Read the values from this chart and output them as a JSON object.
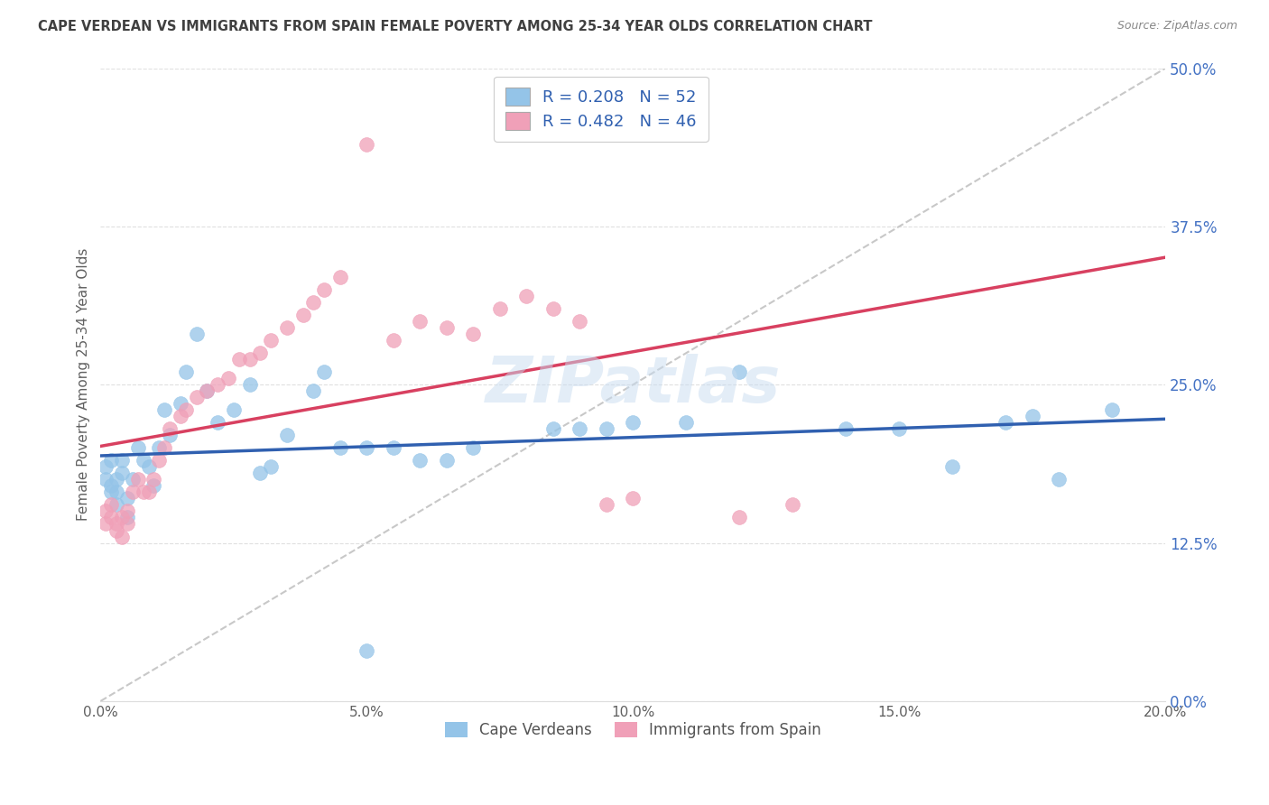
{
  "title": "CAPE VERDEAN VS IMMIGRANTS FROM SPAIN FEMALE POVERTY AMONG 25-34 YEAR OLDS CORRELATION CHART",
  "source": "Source: ZipAtlas.com",
  "ylabel": "Female Poverty Among 25-34 Year Olds",
  "xlim": [
    0.0,
    0.2
  ],
  "ylim": [
    0.0,
    0.5
  ],
  "xlabel_vals": [
    0.0,
    0.05,
    0.1,
    0.15,
    0.2
  ],
  "xlabel_ticks": [
    "0.0%",
    "5.0%",
    "10.0%",
    "15.0%",
    "20.0%"
  ],
  "ylabel_vals": [
    0.0,
    0.125,
    0.25,
    0.375,
    0.5
  ],
  "ylabel_ticks": [
    "0.0%",
    "12.5%",
    "25.0%",
    "37.5%",
    "50.0%"
  ],
  "legend_label1": "Cape Verdeans",
  "legend_label2": "Immigrants from Spain",
  "blue_scatter_color": "#94C4E8",
  "pink_scatter_color": "#F0A0B8",
  "blue_line_color": "#3060B0",
  "pink_line_color": "#D84060",
  "diag_line_color": "#C8C8C8",
  "background_color": "#FFFFFF",
  "grid_color": "#E0E0E0",
  "watermark_color": "#C8DCF0",
  "title_color": "#404040",
  "source_color": "#888888",
  "ylabel_color": "#606060",
  "ytick_color": "#4472C4",
  "xtick_color": "#606060",
  "cv_x": [
    0.001,
    0.001,
    0.002,
    0.002,
    0.002,
    0.003,
    0.003,
    0.003,
    0.004,
    0.004,
    0.005,
    0.005,
    0.006,
    0.007,
    0.008,
    0.009,
    0.01,
    0.011,
    0.012,
    0.013,
    0.015,
    0.016,
    0.018,
    0.02,
    0.022,
    0.025,
    0.028,
    0.03,
    0.032,
    0.035,
    0.04,
    0.042,
    0.045,
    0.05,
    0.055,
    0.06,
    0.065,
    0.07,
    0.085,
    0.09,
    0.095,
    0.1,
    0.11,
    0.12,
    0.14,
    0.15,
    0.16,
    0.17,
    0.175,
    0.18,
    0.19,
    0.05
  ],
  "cv_y": [
    0.175,
    0.185,
    0.165,
    0.17,
    0.19,
    0.165,
    0.175,
    0.155,
    0.18,
    0.19,
    0.16,
    0.145,
    0.175,
    0.2,
    0.19,
    0.185,
    0.17,
    0.2,
    0.23,
    0.21,
    0.235,
    0.26,
    0.29,
    0.245,
    0.22,
    0.23,
    0.25,
    0.18,
    0.185,
    0.21,
    0.245,
    0.26,
    0.2,
    0.2,
    0.2,
    0.19,
    0.19,
    0.2,
    0.215,
    0.215,
    0.215,
    0.22,
    0.22,
    0.26,
    0.215,
    0.215,
    0.185,
    0.22,
    0.225,
    0.175,
    0.23,
    0.04
  ],
  "sp_x": [
    0.001,
    0.001,
    0.002,
    0.002,
    0.003,
    0.003,
    0.004,
    0.004,
    0.005,
    0.005,
    0.006,
    0.007,
    0.008,
    0.009,
    0.01,
    0.011,
    0.012,
    0.013,
    0.015,
    0.016,
    0.018,
    0.02,
    0.022,
    0.024,
    0.026,
    0.028,
    0.03,
    0.032,
    0.035,
    0.038,
    0.04,
    0.042,
    0.045,
    0.05,
    0.055,
    0.06,
    0.065,
    0.07,
    0.075,
    0.08,
    0.085,
    0.09,
    0.095,
    0.1,
    0.12,
    0.13
  ],
  "sp_y": [
    0.14,
    0.15,
    0.145,
    0.155,
    0.135,
    0.14,
    0.13,
    0.145,
    0.14,
    0.15,
    0.165,
    0.175,
    0.165,
    0.165,
    0.175,
    0.19,
    0.2,
    0.215,
    0.225,
    0.23,
    0.24,
    0.245,
    0.25,
    0.255,
    0.27,
    0.27,
    0.275,
    0.285,
    0.295,
    0.305,
    0.315,
    0.325,
    0.335,
    0.44,
    0.285,
    0.3,
    0.295,
    0.29,
    0.31,
    0.32,
    0.31,
    0.3,
    0.155,
    0.16,
    0.145,
    0.155
  ]
}
